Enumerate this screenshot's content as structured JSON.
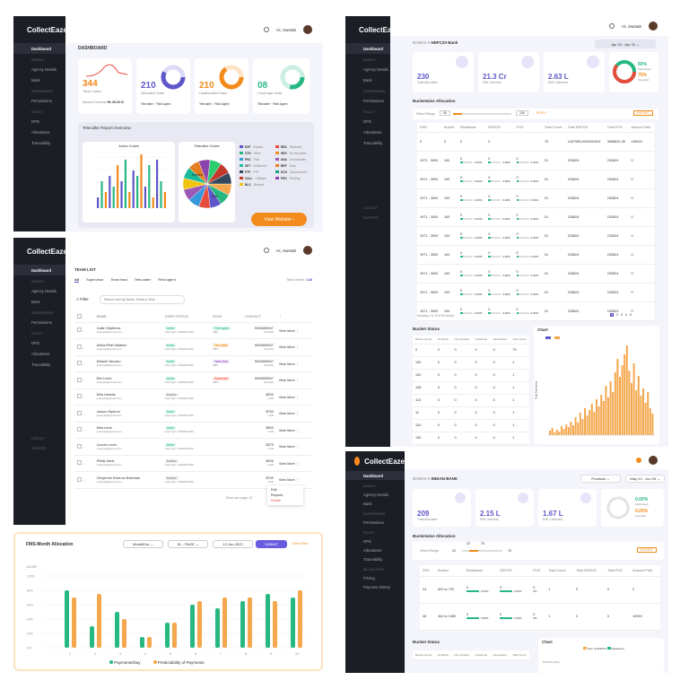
{
  "brand": "CollectEaze",
  "greeting": "Hi, Swetab",
  "p1": {
    "title": "DASHBOARD",
    "menu": [
      "Dashboard",
      "Agency Details",
      "Bank",
      "Permissions",
      "DPD",
      "Allocations",
      "Traceability"
    ],
    "sections": [
      "AGENCY",
      "SUPERVISION",
      "POLICY"
    ],
    "stats": [
      {
        "value": "344",
        "label": "Total Cases",
        "foot": "Amount Overdue",
        "foot2": "Rs 25.29 Cr"
      },
      {
        "value": "210",
        "label": "Allocated Data",
        "l1": "Telecaller",
        "l2": "Field Agent"
      },
      {
        "value": "210",
        "label": "Unallocated Data",
        "l1": "Telecaller",
        "l2": "Field Agent"
      },
      {
        "value": "08",
        "label": "Coverage Data",
        "l1": "Telecaller",
        "l2": "Field Agent"
      }
    ],
    "overview": "Telecaller Report Overview",
    "action_codes": "Action Codes",
    "telecaller_codes": "Telecaller Codes",
    "legend": [
      [
        "EXP",
        "Expired"
      ],
      [
        "RED",
        "Renewed"
      ],
      [
        "OTH",
        "Other"
      ],
      [
        "NRS",
        "No reachable"
      ],
      [
        "PNC",
        "Paid"
      ],
      [
        "UNA",
        "Unreachable"
      ],
      [
        "SET",
        "Settlement"
      ],
      [
        "BRF",
        "Busy"
      ],
      [
        "PTP",
        "PTP"
      ],
      [
        "DCN",
        "Disconnected"
      ],
      [
        "CALL",
        "Callback"
      ],
      [
        "PEN",
        "Pending"
      ],
      [
        "BLO",
        "Blocked"
      ]
    ],
    "pie_labels": [
      "Expired",
      "Paid"
    ],
    "view_website": "View Website"
  },
  "p2": {
    "breadcrumb": [
      "BANKS",
      ">",
      "HDFC20 Bank"
    ],
    "date_range": "Apr 22 - Apr 22",
    "menu": [
      "Dashboard",
      "Agency Details",
      "Bank",
      "Permissions",
      "DPD",
      "Allocations",
      "Traceability"
    ],
    "sections": [
      "AGENCY",
      "SUPERVISION",
      "POLICY"
    ],
    "bottom_links": [
      "LOG OUT",
      "Support"
    ],
    "stats": [
      {
        "value": "230",
        "label": "Total Allocated"
      },
      {
        "value": "21.3 Cr",
        "label": "EMI Overdue"
      },
      {
        "value": "2.63 L",
        "label": "EMI Collected"
      }
    ],
    "gauge": {
      "pct1": "60%",
      "label1": "Field Agent",
      "pct2": "75%",
      "label2": "Telecaller"
    },
    "bucketwise": "Bucketwise Allocation",
    "select_range": "Select Range",
    "range_from": "00",
    "range_to": "100",
    "apply": "APPLY",
    "export": "EXPORT",
    "cols": [
      "DPD",
      "Bucket",
      "Readiness",
      "DDPOS",
      "POS",
      "Total Count",
      "Total DDPOS",
      "Total POS",
      "Amount Paid"
    ],
    "rows": [
      [
        "0",
        "0",
        "0",
        "0",
        "",
        "75",
        "1457985,0000000001",
        "3996642.28",
        "165312"
      ],
      [
        "1971 - 3000",
        "100",
        "0",
        "0",
        "0",
        "01",
        "233824",
        "232824",
        "0"
      ],
      [
        "1971 - 3000",
        "100",
        "0",
        "0",
        "0",
        "01",
        "233824",
        "232824",
        "0"
      ],
      [
        "1971 - 3000",
        "100",
        "0",
        "0",
        "0",
        "01",
        "233824",
        "232824",
        "0"
      ],
      [
        "1971 - 3000",
        "100",
        "0",
        "0",
        "0",
        "01",
        "233824",
        "232824",
        "0"
      ],
      [
        "1971 - 3000",
        "100",
        "0",
        "0",
        "0",
        "01",
        "233824",
        "232824",
        "0"
      ],
      [
        "1971 - 3000",
        "100",
        "0",
        "0",
        "0",
        "01",
        "233824",
        "232824",
        "0"
      ],
      [
        "1971 - 3000",
        "100",
        "0",
        "0",
        "0",
        "01",
        "233824",
        "232824",
        "0"
      ],
      [
        "1971 - 3000",
        "100",
        "0",
        "0",
        "0",
        "01",
        "233824",
        "232824",
        "0"
      ],
      [
        "1971 - 3000",
        "100",
        "0",
        "0",
        "0",
        "01",
        "233824",
        "232824",
        "0"
      ]
    ],
    "pct": "0.00%",
    "showing": "Showing 1 to 10 of 50 entries",
    "pages": [
      "1",
      "2",
      "3",
      "4",
      "5"
    ],
    "bucket_status": "Bucket Status",
    "bs_cols": [
      "Bucket Group",
      "Not Buck",
      "Not Forward",
      "Undefined",
      "Neutralised",
      "Total Count"
    ],
    "bs_rows": [
      [
        "0",
        "0",
        "0",
        "0",
        "0",
        "79"
      ],
      [
        "100",
        "0",
        "0",
        "0",
        "0",
        "1"
      ],
      [
        "102",
        "0",
        "0",
        "0",
        "0",
        "1"
      ],
      [
        "108",
        "0",
        "0",
        "0",
        "0",
        "1"
      ],
      [
        "110",
        "0",
        "0",
        "0",
        "0",
        "1"
      ],
      [
        "11",
        "0",
        "0",
        "0",
        "0",
        "1"
      ],
      [
        "120",
        "0",
        "0",
        "0",
        "0",
        "1"
      ],
      [
        "130",
        "0",
        "0",
        "0",
        "0",
        "1"
      ]
    ],
    "chart_title": "Chart",
    "y_axis": "Total Payments"
  },
  "p3": {
    "title": "TEAM LIST",
    "tabs": [
      "All",
      "Supervisor",
      "Team lead",
      "Tele-caller",
      "Field agent"
    ],
    "total": "Total Users:",
    "total_n": "148",
    "filter": "Filter",
    "search_placeholder": "Search user by Name, Email or Role",
    "menu": [
      "Dashboard",
      "Agency Details",
      "Bank",
      "Permissions",
      "DPD",
      "Allocations",
      "Traceability"
    ],
    "sections": [
      "AGENCY",
      "SUPERVISION",
      "POLICY"
    ],
    "bottom": [
      "Logout",
      "Support"
    ],
    "cols": [
      "NAME",
      "USER STATUS",
      "ROLE",
      "CONTACT"
    ],
    "rows": [
      {
        "name": "Justin Septimus",
        "email": "example@email.com",
        "status": "Active",
        "date": "Last login: 15/APR/2020",
        "role": "Field agent",
        "role2": "SBS",
        "contact": "9004689547",
        "sub": "Mumbai",
        "rc": "g"
      },
      {
        "name": "Anika Rhiel Madsen",
        "email": "example@email.com",
        "status": "Active",
        "date": "Last login: 15/APR/2020",
        "role": "Tele caller",
        "role2": "SBS",
        "contact": "9004689547",
        "sub": "Mumbai",
        "rc": "o"
      },
      {
        "name": "Miracle Vaccaro",
        "email": "example@email.com",
        "status": "Active",
        "date": "Last login: 15/APR/2020",
        "role": "Team lead",
        "role2": "SBS",
        "contact": "9004689547",
        "sub": "Mumbai",
        "rc": "p"
      },
      {
        "name": "Erin Levin",
        "email": "example@email.com",
        "status": "Active",
        "date": "Last login: 15/APR/2020",
        "role": "Supervisor",
        "role2": "SBS",
        "contact": "9004689547",
        "sub": "Mumbai",
        "rc": "r"
      },
      {
        "name": "Mira Herwitz",
        "email": "example@email.com",
        "status": "Inactive",
        "date": "Last login: 15/APR/2020",
        "role": "",
        "role2": "",
        "contact": "$200",
        "sub": "USD",
        "rc": ""
      },
      {
        "name": "Jaxson Siphron",
        "email": "example@email.com",
        "status": "Active",
        "date": "Last login: 15/APR/2020",
        "role": "",
        "role2": "",
        "contact": "$750",
        "sub": "USD",
        "rc": ""
      },
      {
        "name": "Mira Levin",
        "email": "example@email.com",
        "status": "Active",
        "date": "Last login: 15/APR/2020",
        "role": "",
        "role2": "",
        "contact": "$500",
        "sub": "USD",
        "rc": ""
      },
      {
        "name": "Lincoln Levin",
        "email": "example@email.com",
        "status": "Active",
        "date": "Last login: 15/APR/2020",
        "role": "",
        "role2": "",
        "contact": "$375",
        "sub": "USD",
        "rc": ""
      },
      {
        "name": "Phillip Saris",
        "email": "example@email.com",
        "status": "Inactive",
        "date": "Last login: 15/APR/2020",
        "role": "",
        "role2": "",
        "contact": "$200",
        "sub": "USD",
        "rc": ""
      },
      {
        "name": "Cheyenne Ekstrom Bothman",
        "email": "example@email.com",
        "status": "Inactive",
        "date": "Last login: 15/APR/2020",
        "role": "",
        "role2": "",
        "contact": "$700",
        "sub": "USD",
        "rc": ""
      }
    ],
    "view_more": "View More",
    "rows_per_page": "Rows per page: 10",
    "context_menu": [
      "Edit",
      "Reports",
      "Delete"
    ]
  },
  "p4": {
    "title": "FMS-Month Allocation",
    "selects": [
      "MonthEnd",
      "EL - PAGE",
      "12-Jun-2022"
    ],
    "submit": "SUBMIT",
    "clear": "Clear Filter",
    "ylabel": "COUNT",
    "legend": [
      "Payments/Day",
      "Predictability of Payments"
    ]
  },
  "p5": {
    "breadcrumb": [
      "BANKS",
      ">",
      "INDIAN BANK"
    ],
    "product": "Products",
    "date": "May 22 - Jun 26",
    "menu": [
      "Dashboard",
      "Agency Details",
      "Bank",
      "Permissions",
      "DPD",
      "Allocations",
      "Traceability",
      "Pricing",
      "Payment history"
    ],
    "sections": [
      "AGENCY",
      "SUPERVISION",
      "POLICY",
      "BILLING INFO"
    ],
    "stats": [
      {
        "value": "209",
        "label": "Total Allocated"
      },
      {
        "value": "2.15 L",
        "label": "EMI Overdue"
      },
      {
        "value": "1.67 L",
        "label": "EMI Collected"
      }
    ],
    "gauge": {
      "pct1": "0.00%",
      "label1": "Field Agent",
      "pct2": "0.05%",
      "label2": "Telecaller"
    },
    "bucketwise": "Bucketwise Allocation",
    "select_range": "Select Range",
    "range_from": "22",
    "range_to": "76",
    "rmin": "20",
    "rmax": "76",
    "export": "EXPORT",
    "cols": [
      "DPD",
      "Bucket",
      "Readiness",
      "DDPOS",
      "POS",
      "Total Count",
      "Total DDPOS",
      "Total POS",
      "Amount Paid"
    ],
    "rows": [
      [
        "24",
        "691 to 720",
        "0",
        "0",
        "0",
        "1",
        "0",
        "0",
        "0"
      ],
      [
        "46",
        "461 to 1480",
        "0",
        "0",
        "0",
        "1",
        "0",
        "0",
        "10000"
      ]
    ],
    "pct": "0.00%",
    "pct2": "0%",
    "bucket_status": "Bucket Status",
    "bs_cols": [
      "Bucket Group",
      "Not Buck",
      "Not Forward",
      "Undefined",
      "Neutralised",
      "Total Count"
    ],
    "chart": "Chart",
    "chart_legend": [
      "Sum of DDPOS",
      "Readiness"
    ],
    "chart_ylabel": "DDPOS (INR)"
  },
  "chart_data": [
    {
      "type": "bar",
      "title": "Action Codes",
      "series": [
        {
          "name": "",
          "values": [
            2,
            5,
            3,
            6,
            4,
            8,
            5,
            9,
            3,
            7,
            6,
            10,
            4,
            8,
            2,
            9,
            5,
            3
          ]
        }
      ]
    },
    {
      "type": "pie",
      "title": "Telecaller Codes",
      "categories": [
        "Expired",
        "Paid"
      ]
    },
    {
      "type": "bar",
      "title": "FMS-Month Allocation",
      "categories": [
        "1",
        "2",
        "3",
        "4",
        "5",
        "6",
        "7",
        "8",
        "9",
        "10"
      ],
      "series": [
        {
          "name": "Payments/Day",
          "values": [
            80,
            30,
            50,
            15,
            35,
            60,
            55,
            65,
            75,
            70
          ]
        },
        {
          "name": "Predictability of Payments",
          "values": [
            70,
            75,
            40,
            15,
            35,
            65,
            70,
            70,
            65,
            80
          ]
        }
      ],
      "ylim": [
        0,
        100
      ],
      "legend": "bottom"
    },
    {
      "type": "bar",
      "title": "Chart",
      "series": [
        {
          "name": "",
          "values": [
            5,
            8,
            3,
            6,
            4,
            10,
            7,
            12,
            9,
            15,
            11,
            20,
            14,
            25,
            18,
            30,
            22,
            28,
            35,
            26,
            40,
            32,
            45,
            38,
            55,
            42,
            60,
            48,
            70,
            85,
            65,
            78,
            90,
            100,
            72,
            58,
            80,
            50,
            66,
            44,
            52,
            36,
            48,
            30,
            24
          ]
        }
      ]
    }
  ]
}
